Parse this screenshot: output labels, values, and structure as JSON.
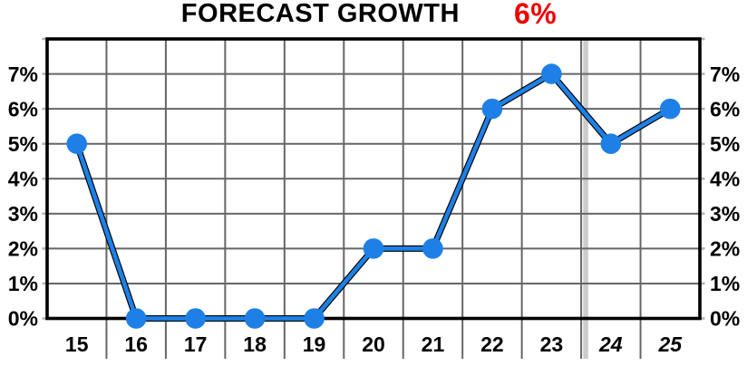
{
  "title": {
    "text": "FORECAST GROWTH",
    "value": "6%"
  },
  "colors": {
    "background": "#ffffff",
    "title": "#000000",
    "value": "#ee0000",
    "line": "#1e80e6",
    "line_outline": "#000000",
    "marker": "#1e80e6",
    "grid": "#666666",
    "tick": "#b3b3b3",
    "border": "#000000",
    "forecast_divider": "#cccccc",
    "label": "#000000"
  },
  "chart_data": {
    "type": "line",
    "title": "FORECAST GROWTH 6%",
    "x": [
      "15",
      "16",
      "17",
      "18",
      "19",
      "20",
      "21",
      "22",
      "23",
      "24",
      "25"
    ],
    "series": [
      {
        "name": "forecast growth",
        "values": [
          5,
          0,
          0,
          0,
          0,
          2,
          2,
          6,
          7,
          5,
          6
        ]
      }
    ],
    "unit": "%",
    "ylim": [
      0,
      8
    ],
    "y_ticks": [
      0,
      1,
      2,
      3,
      4,
      5,
      6,
      7
    ],
    "y_tick_labels": [
      "0%",
      "1%",
      "2%",
      "3%",
      "4%",
      "5%",
      "6%",
      "7%"
    ],
    "y_axis_sides": [
      "left",
      "right"
    ],
    "xlabel": "",
    "ylabel": "",
    "grid": true,
    "legend": "none",
    "forecast_start_index": 9
  }
}
